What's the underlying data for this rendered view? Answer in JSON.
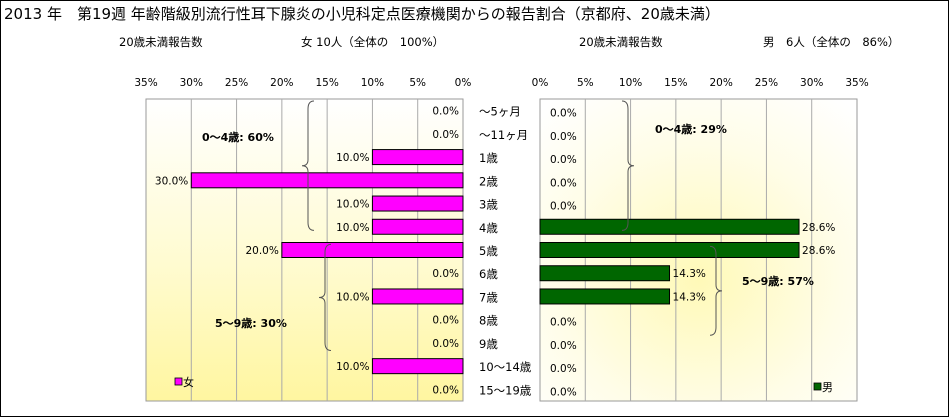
{
  "title": "2013 年　第19週 年齢階級別流行性耳下腺炎の小児科定点医療機関からの報告割合（京都府、20歳未満）",
  "left_header": {
    "label": "20歳未満報告数",
    "count": "女 10人（全体の　100%）"
  },
  "right_header": {
    "label": "20歳未満報告数",
    "count": "男　6人（全体の　86%）"
  },
  "chart_data": [
    {
      "type": "bar",
      "orientation": "horizontal-reversed",
      "categories": [
        "～5ヶ月",
        "～11ヶ月",
        "1歳",
        "2歳",
        "3歳",
        "4歳",
        "5歳",
        "6歳",
        "7歳",
        "8歳",
        "9歳",
        "10～14歳",
        "15～19歳"
      ],
      "series": [
        {
          "name": "女",
          "values": [
            0,
            0,
            10,
            30,
            10,
            10,
            20,
            0,
            10,
            0,
            0,
            10,
            0
          ],
          "color": "#ff00ff"
        }
      ],
      "value_labels": [
        "0.0%",
        "0.0%",
        "10.0%",
        "30.0%",
        "10.0%",
        "10.0%",
        "20.0%",
        "0.0%",
        "10.0%",
        "0.0%",
        "0.0%",
        "10.0%",
        "0.0%"
      ],
      "xlim": [
        0,
        35
      ],
      "tick_labels": [
        "35%",
        "30%",
        "25%",
        "20%",
        "15%",
        "10%",
        "5%",
        "0%"
      ],
      "annotations": [
        "0～4歳: 60%",
        "5～9歳: 30%"
      ],
      "legend": "bottom-left"
    },
    {
      "type": "bar",
      "orientation": "horizontal",
      "categories": [
        "～5ヶ月",
        "～11ヶ月",
        "1歳",
        "2歳",
        "3歳",
        "4歳",
        "5歳",
        "6歳",
        "7歳",
        "8歳",
        "9歳",
        "10～14歳",
        "15～19歳"
      ],
      "series": [
        {
          "name": "男",
          "values": [
            0,
            0,
            0,
            0,
            0,
            28.6,
            28.6,
            14.3,
            14.3,
            0,
            0,
            0,
            0
          ],
          "color": "#006600"
        }
      ],
      "value_labels": [
        "0.0%",
        "0.0%",
        "0.0%",
        "0.0%",
        "0.0%",
        "28.6%",
        "28.6%",
        "14.3%",
        "14.3%",
        "0.0%",
        "0.0%",
        "0.0%",
        "0.0%"
      ],
      "xlim": [
        0,
        35
      ],
      "tick_labels": [
        "0%",
        "5%",
        "10%",
        "15%",
        "20%",
        "25%",
        "30%",
        "35%"
      ],
      "annotations": [
        "0～4歳: 29%",
        "5～9歳: 57%"
      ],
      "legend": "bottom-right"
    }
  ]
}
